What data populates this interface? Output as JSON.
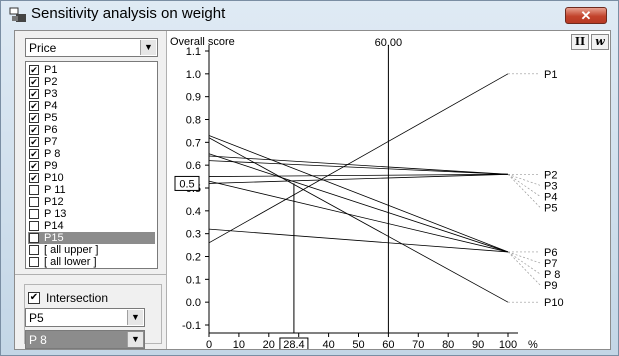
{
  "window": {
    "title": "Sensitivity analysis on weight",
    "close_label": "✕"
  },
  "criterion_select": {
    "value": "Price"
  },
  "alternatives": [
    {
      "label": "P1",
      "checked": true
    },
    {
      "label": "P2",
      "checked": true
    },
    {
      "label": "P3",
      "checked": true
    },
    {
      "label": "P4",
      "checked": true
    },
    {
      "label": "P5",
      "checked": true
    },
    {
      "label": "P6",
      "checked": true
    },
    {
      "label": "P7",
      "checked": true
    },
    {
      "label": "P 8",
      "checked": true
    },
    {
      "label": "P9",
      "checked": true
    },
    {
      "label": "P10",
      "checked": true
    },
    {
      "label": "P 11",
      "checked": false
    },
    {
      "label": "P12",
      "checked": false
    },
    {
      "label": "P 13",
      "checked": false
    },
    {
      "label": "P14",
      "checked": false
    },
    {
      "label": "P15",
      "checked": false,
      "selected": true
    },
    {
      "label": "[ all upper ]",
      "checked": false
    },
    {
      "label": "[ all lower ]",
      "checked": false
    }
  ],
  "intersection": {
    "label": "Intersection",
    "checked": true,
    "select_a": "P5",
    "select_b": "P 8"
  },
  "toolbar": {
    "btn_ii": "II",
    "btn_w": "w"
  },
  "chart_data": {
    "type": "line",
    "ylabel": "Overall score",
    "xunit": "%",
    "xlim": [
      0,
      100
    ],
    "ylim": [
      -0.1,
      1.1
    ],
    "x_ticks": [
      0,
      10,
      20,
      30,
      40,
      50,
      60,
      70,
      80,
      90,
      100
    ],
    "y_ticks": [
      -0.1,
      0.0,
      0.1,
      0.2,
      0.3,
      0.4,
      0.5,
      0.6,
      0.7,
      0.8,
      0.9,
      1.0,
      1.1
    ],
    "current_weight_label": "60.00",
    "current_weight": 60,
    "intersection_x_label": "28.4",
    "intersection_x": 28.4,
    "y_marker_label": "0.5",
    "y_marker": 0.52,
    "series": [
      {
        "name": "P1",
        "y0": 0.26,
        "y100": 1.0
      },
      {
        "name": "P2",
        "y0": 0.62,
        "y100": 0.56
      },
      {
        "name": "P3",
        "y0": 0.55,
        "y100": 0.56
      },
      {
        "name": "P4",
        "y0": 0.52,
        "y100": 0.56
      },
      {
        "name": "P5",
        "y0": 0.64,
        "y100": 0.56
      },
      {
        "name": "P6",
        "y0": 0.73,
        "y100": 0.22
      },
      {
        "name": "P7",
        "y0": 0.53,
        "y100": 0.22
      },
      {
        "name": "P 8",
        "y0": 0.32,
        "y100": 0.22
      },
      {
        "name": "P9",
        "y0": 0.65,
        "y100": 0.22
      },
      {
        "name": "P10",
        "y0": 0.72,
        "y100": 0.0
      }
    ]
  }
}
